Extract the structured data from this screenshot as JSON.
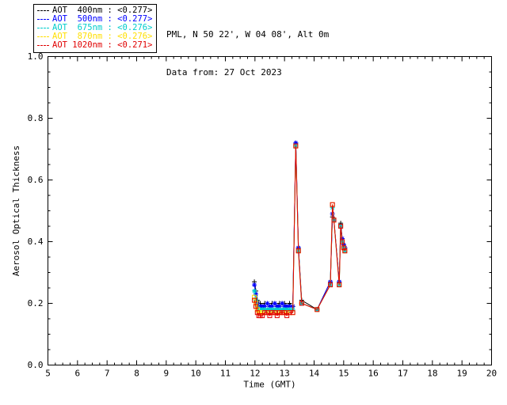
{
  "header": {
    "station": "PML, N 50 22', W 04 08', Alt 0m",
    "data_from": "Data from: 27 Oct 2023"
  },
  "chart_data": {
    "type": "line",
    "title": "",
    "xlabel": "Time (GMT)",
    "ylabel": "Aerosol Optical Thickness",
    "xlim": [
      5,
      20
    ],
    "ylim": [
      0.0,
      1.0
    ],
    "xticks": [
      5,
      6,
      7,
      8,
      9,
      10,
      11,
      12,
      13,
      14,
      15,
      16,
      17,
      18,
      19,
      20
    ],
    "yticks": [
      0.0,
      0.2,
      0.4,
      0.6,
      0.8,
      1.0
    ],
    "x_minor_step": 0.25,
    "y_minor_step": 0.05,
    "grid": false,
    "legend_position": "top-left-outside",
    "x": [
      11.98,
      12.03,
      12.08,
      12.13,
      12.18,
      12.25,
      12.33,
      12.42,
      12.5,
      12.58,
      12.67,
      12.75,
      12.83,
      12.92,
      13.0,
      13.08,
      13.17,
      13.28,
      13.38,
      13.47,
      13.58,
      14.1,
      14.55,
      14.62,
      14.67,
      14.85,
      14.9,
      14.95,
      15.0,
      15.04
    ],
    "series": [
      {
        "name": "AOT 400nm",
        "legend_label": "AOT  400nm : <0.277>",
        "mean": "<0.277>",
        "color": "#000000",
        "marker": "plus",
        "values": [
          0.27,
          0.24,
          0.21,
          0.2,
          0.2,
          0.19,
          0.2,
          0.2,
          0.19,
          0.2,
          0.2,
          0.19,
          0.2,
          0.2,
          0.2,
          0.19,
          0.2,
          0.19,
          0.72,
          0.38,
          0.21,
          0.18,
          0.27,
          0.48,
          0.47,
          0.27,
          0.46,
          0.41,
          0.39,
          0.38
        ]
      },
      {
        "name": "AOT 500nm",
        "legend_label": "AOT  500nm : <0.277>",
        "mean": "<0.277>",
        "color": "#0000ff",
        "marker": "asterisk",
        "values": [
          0.26,
          0.23,
          0.2,
          0.19,
          0.19,
          0.19,
          0.19,
          0.2,
          0.19,
          0.19,
          0.2,
          0.19,
          0.19,
          0.2,
          0.19,
          0.19,
          0.19,
          0.19,
          0.72,
          0.38,
          0.2,
          0.18,
          0.27,
          0.49,
          0.47,
          0.27,
          0.45,
          0.41,
          0.39,
          0.38
        ]
      },
      {
        "name": "AOT 675nm",
        "legend_label": "AOT  675nm : <0.276>",
        "mean": "<0.276>",
        "color": "#00cccc",
        "marker": "asterisk",
        "values": [
          0.24,
          0.21,
          0.19,
          0.18,
          0.18,
          0.18,
          0.18,
          0.18,
          0.18,
          0.18,
          0.18,
          0.18,
          0.18,
          0.18,
          0.18,
          0.18,
          0.18,
          0.18,
          0.71,
          0.37,
          0.2,
          0.18,
          0.26,
          0.51,
          0.47,
          0.26,
          0.45,
          0.4,
          0.38,
          0.37
        ]
      },
      {
        "name": "AOT 870nm",
        "legend_label": "AOT  870nm : <0.276>",
        "mean": "<0.276>",
        "color": "#ffdf00",
        "marker": "square",
        "values": [
          0.22,
          0.2,
          0.18,
          0.17,
          0.17,
          0.17,
          0.17,
          0.17,
          0.17,
          0.17,
          0.17,
          0.17,
          0.17,
          0.17,
          0.17,
          0.17,
          0.17,
          0.17,
          0.71,
          0.37,
          0.2,
          0.18,
          0.26,
          0.52,
          0.47,
          0.26,
          0.45,
          0.4,
          0.38,
          0.37
        ]
      },
      {
        "name": "AOT 1020nm",
        "legend_label": "AOT 1020nm : <0.271>",
        "mean": "<0.271>",
        "color": "#e00000",
        "marker": "square",
        "values": [
          0.21,
          0.19,
          0.17,
          0.16,
          0.16,
          0.16,
          0.17,
          0.17,
          0.16,
          0.17,
          0.17,
          0.16,
          0.17,
          0.17,
          0.17,
          0.16,
          0.17,
          0.17,
          0.71,
          0.37,
          0.2,
          0.18,
          0.26,
          0.52,
          0.47,
          0.26,
          0.45,
          0.4,
          0.38,
          0.37
        ]
      }
    ]
  }
}
